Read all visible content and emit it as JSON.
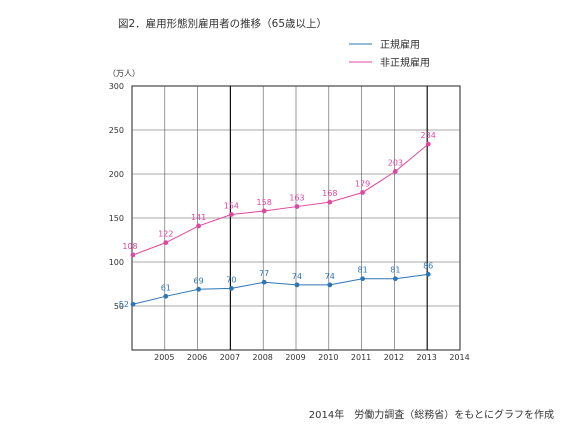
{
  "chart_data": {
    "type": "line",
    "title": "図2．雇用形態別雇用者の推移（65歳以上）",
    "unit_label": "（万人）",
    "xlabel": "",
    "ylabel": "",
    "ylim": [
      0,
      300
    ],
    "yticks": [
      "300",
      "250",
      "200",
      "150",
      "100",
      "50"
    ],
    "x": [
      "2005",
      "2006",
      "2007",
      "2008",
      "2009",
      "2010",
      "2011",
      "2012",
      "2013",
      "2014"
    ],
    "series": [
      {
        "name": "正規雇用",
        "color": "#2e75b6",
        "values": [
          52,
          61,
          69,
          70,
          77,
          74,
          74,
          81,
          81,
          86
        ],
        "labels": [
          "52",
          "61",
          "69",
          "70",
          "77",
          "74",
          "74",
          "81",
          "81",
          "86"
        ]
      },
      {
        "name": "非正規雇用",
        "color": "#e0479e",
        "values": [
          108,
          122,
          141,
          154,
          158,
          163,
          168,
          179,
          203,
          234
        ],
        "labels": [
          "108",
          "122",
          "141",
          "154",
          "158",
          "163",
          "168",
          "179",
          "203",
          "234"
        ]
      }
    ],
    "grid": true,
    "legend_position": "top-right",
    "source_note": "2014年　労働力調査（総務省）をもとにグラフを作成"
  }
}
